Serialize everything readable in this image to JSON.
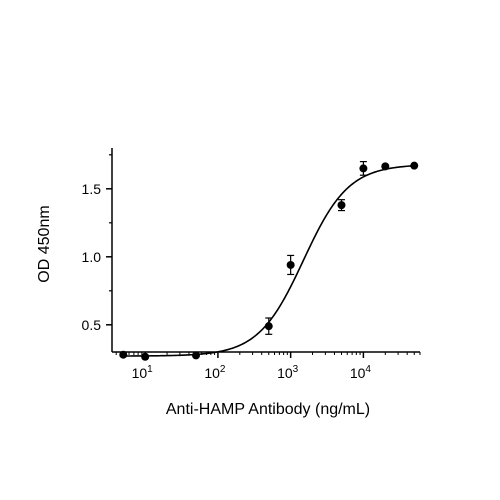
{
  "chart_data": {
    "type": "scatter",
    "title": "",
    "xlabel": "Anti-HAMP Antibody (ng/mL)",
    "ylabel": "OD 450nm",
    "xscale": "log",
    "xlim": [
      3.5,
      60000
    ],
    "ylim": [
      0.3,
      1.8
    ],
    "grid": false,
    "legend": "none",
    "x_ticks": [
      {
        "value": 10,
        "base": "10",
        "exp": "1"
      },
      {
        "value": 100,
        "base": "10",
        "exp": "2"
      },
      {
        "value": 1000,
        "base": "10",
        "exp": "3"
      },
      {
        "value": 10000,
        "base": "10",
        "exp": "4"
      }
    ],
    "y_ticks": [
      {
        "value": 0.5,
        "label": "0.5"
      },
      {
        "value": 1.0,
        "label": "1.0"
      },
      {
        "value": 1.5,
        "label": "1.5"
      }
    ],
    "series": [
      {
        "points": [
          {
            "x": 5,
            "y": 0.28,
            "err": 0
          },
          {
            "x": 10,
            "y": 0.265,
            "err": 0
          },
          {
            "x": 50,
            "y": 0.275,
            "err": 0
          },
          {
            "x": 500,
            "y": 0.49,
            "err": 0.06
          },
          {
            "x": 1000,
            "y": 0.94,
            "err": 0.07
          },
          {
            "x": 5000,
            "y": 1.38,
            "err": 0.04
          },
          {
            "x": 10000,
            "y": 1.65,
            "err": 0.05
          },
          {
            "x": 20000,
            "y": 1.665,
            "err": 0
          },
          {
            "x": 50000,
            "y": 1.67,
            "err": 0
          }
        ],
        "fit": {
          "model": "4PL",
          "bottom": 0.27,
          "top": 1.68,
          "ec50": 1500,
          "hill": 1.4
        }
      }
    ],
    "colors": {
      "marker": "#000000",
      "line": "#000000"
    }
  }
}
